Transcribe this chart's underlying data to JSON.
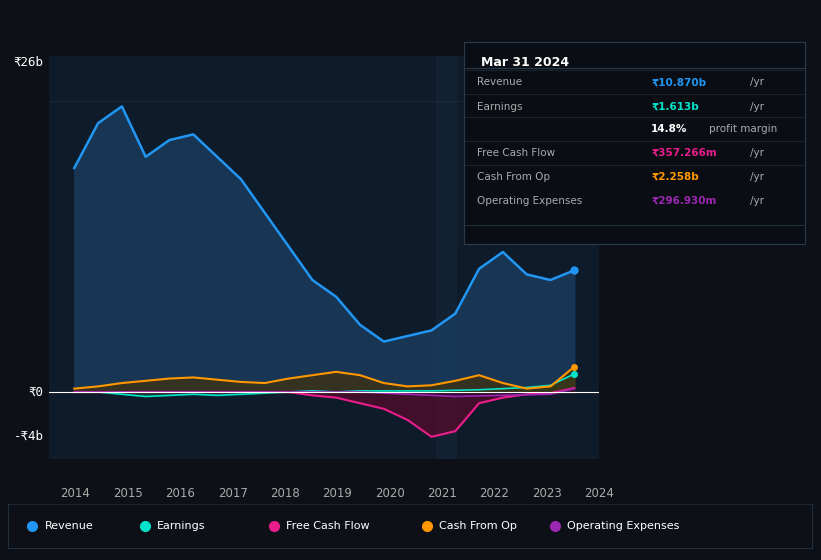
{
  "background_color": "#0d1117",
  "plot_bg_color": "#0d1b2a",
  "grid_color": "#2a3a4a",
  "zero_line_color": "#ffffff",
  "ylim": [
    -6000000000.0,
    30000000000.0
  ],
  "yticks": [
    0,
    26000000000.0,
    -4000000000.0
  ],
  "ytick_labels": [
    "₹0",
    "₹26b",
    "-₹4b"
  ],
  "years": [
    2013.5,
    2014,
    2014.5,
    2015,
    2015.5,
    2016,
    2016.5,
    2017,
    2017.5,
    2018,
    2018.5,
    2019,
    2019.5,
    2020,
    2020.5,
    2021,
    2021.5,
    2022,
    2022.5,
    2023,
    2023.5,
    2024
  ],
  "revenue": [
    20000000000.0,
    24000000000.0,
    25500000000.0,
    21000000000.0,
    22500000000.0,
    23000000000.0,
    21000000000.0,
    19000000000.0,
    16000000000.0,
    13000000000.0,
    10000000000.0,
    8500000000.0,
    6000000000.0,
    4500000000.0,
    5000000000.0,
    5500000000.0,
    7000000000.0,
    11000000000.0,
    12500000000.0,
    10500000000.0,
    10000000000.0,
    10870000000.0
  ],
  "earnings": [
    0,
    0,
    -200000000.0,
    -400000000.0,
    -300000000.0,
    -200000000.0,
    -300000000.0,
    -200000000.0,
    -100000000.0,
    0,
    100000000.0,
    0,
    100000000.0,
    100000000.0,
    100000000.0,
    100000000.0,
    150000000.0,
    200000000.0,
    300000000.0,
    400000000.0,
    600000000.0,
    1613000000.0
  ],
  "free_cash_flow": [
    0,
    0,
    0,
    0,
    0,
    0,
    0,
    0,
    0,
    0,
    -300000000.0,
    -500000000.0,
    -1000000000.0,
    -1500000000.0,
    -2500000000.0,
    -4000000000.0,
    -3500000000.0,
    -1000000000.0,
    -500000000.0,
    -200000000.0,
    -100000000.0,
    357000000.0
  ],
  "cash_from_op": [
    300000000.0,
    500000000.0,
    800000000.0,
    1000000000.0,
    1200000000.0,
    1300000000.0,
    1100000000.0,
    900000000.0,
    800000000.0,
    1200000000.0,
    1500000000.0,
    1800000000.0,
    1500000000.0,
    800000000.0,
    500000000.0,
    600000000.0,
    1000000000.0,
    1500000000.0,
    800000000.0,
    300000000.0,
    500000000.0,
    2258000000.0
  ],
  "operating_expenses": [
    0,
    0,
    0,
    0,
    0,
    0,
    0,
    0,
    0,
    0,
    0,
    0,
    0,
    -100000000.0,
    -200000000.0,
    -300000000.0,
    -400000000.0,
    -350000000.0,
    -300000000.0,
    -250000000.0,
    -200000000.0,
    297000000.0
  ],
  "revenue_color": "#2196f3",
  "earnings_color": "#00e5c9",
  "free_cash_flow_color": "#e91e8c",
  "cash_from_op_color": "#ff9800",
  "operating_expenses_color": "#9c27b0",
  "revenue_fill": "#1a3a5c",
  "legend_items": [
    "Revenue",
    "Earnings",
    "Free Cash Flow",
    "Cash From Op",
    "Operating Expenses"
  ],
  "tooltip_title": "Mar 31 2024",
  "tooltip_bg": "#0a0e14",
  "tooltip_border": "#2a3a4a",
  "info_table": {
    "Revenue": {
      "value": "₹10.870b /yr",
      "color": "#2196f3"
    },
    "Earnings": {
      "value": "₹1.613b /yr",
      "color": "#00e5c9"
    },
    "Earnings_note": {
      "value": "14.8% profit margin",
      "color": "#ffffff"
    },
    "Free Cash Flow": {
      "value": "₹357.266m /yr",
      "color": "#e91e8c"
    },
    "Cash From Op": {
      "value": "₹2.258b /yr",
      "color": "#ff9800"
    },
    "Operating Expenses": {
      "value": "₹296.930m /yr",
      "color": "#9c27b0"
    }
  }
}
